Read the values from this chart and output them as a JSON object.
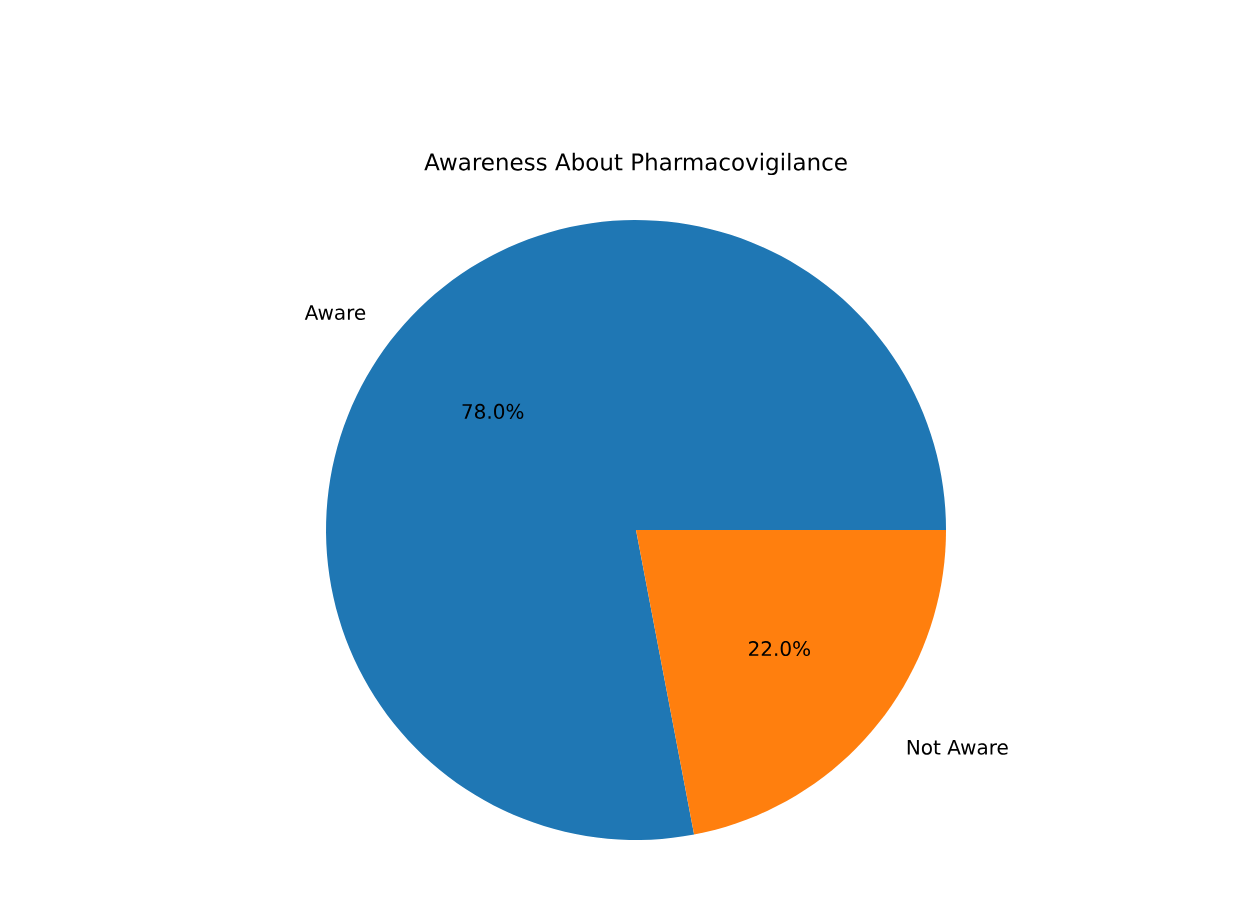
{
  "chart_data": {
    "type": "pie",
    "title": "Awareness About Pharmacovigilance",
    "categories": [
      "Aware",
      "Not Aware"
    ],
    "values": [
      78.0,
      22.0
    ],
    "colors": [
      "#1f77b4",
      "#ff7f0e"
    ],
    "value_labels": [
      "78.0%",
      "22.0%"
    ]
  }
}
